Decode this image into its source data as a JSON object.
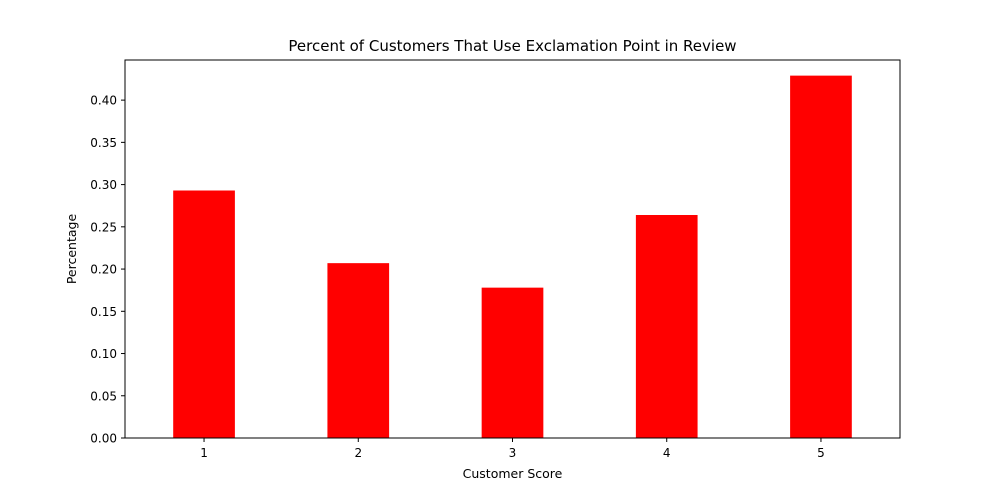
{
  "chart_data": {
    "type": "bar",
    "title": "Percent of Customers That Use Exclamation Point in Review",
    "xlabel": "Customer Score",
    "ylabel": "Percentage",
    "categories": [
      "1",
      "2",
      "3",
      "4",
      "5"
    ],
    "values": [
      0.293,
      0.207,
      0.178,
      0.264,
      0.429
    ],
    "ylim": [
      0,
      0.4475
    ],
    "yticks": [
      0.0,
      0.05,
      0.1,
      0.15,
      0.2,
      0.25,
      0.3,
      0.35,
      0.4
    ],
    "ytick_labels": [
      "0.00",
      "0.05",
      "0.10",
      "0.15",
      "0.20",
      "0.25",
      "0.30",
      "0.35",
      "0.40"
    ],
    "grid": false,
    "legend": "none",
    "bar_color": "#ff0000"
  }
}
